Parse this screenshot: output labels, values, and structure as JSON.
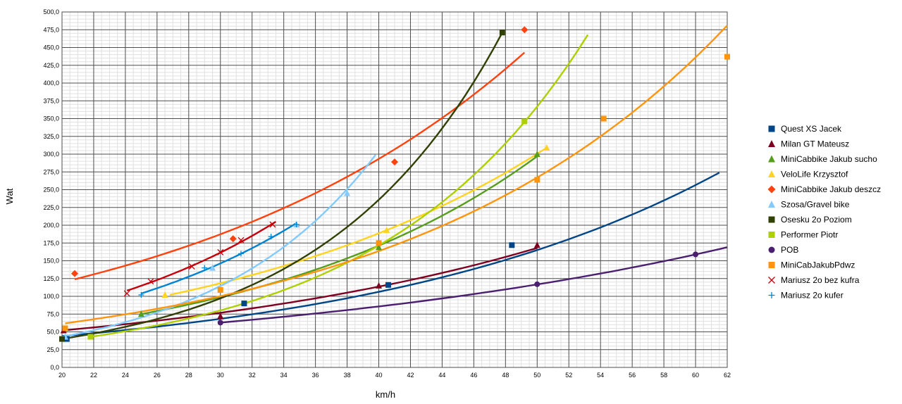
{
  "chart_data": {
    "type": "scatter",
    "xlabel": "km/h",
    "ylabel": "Wat",
    "xlim": [
      20,
      62
    ],
    "ylim": [
      0,
      500
    ],
    "x_ticks": [
      "20",
      "22",
      "24",
      "26",
      "28",
      "30",
      "32",
      "34",
      "36",
      "38",
      "40",
      "42",
      "44",
      "46",
      "48",
      "50",
      "52",
      "54",
      "56",
      "58",
      "60",
      "62"
    ],
    "y_ticks": [
      "0,0",
      "25,0",
      "50,0",
      "75,0",
      "100,0",
      "125,0",
      "150,0",
      "175,0",
      "200,0",
      "225,0",
      "250,0",
      "275,0",
      "300,0",
      "325,0",
      "350,0",
      "375,0",
      "400,0",
      "425,0",
      "450,0",
      "475,0",
      "500,0"
    ],
    "grid": true,
    "legend_position": "right",
    "series": [
      {
        "name": "Quest XS Jacek",
        "color": "#004586",
        "marker": "square",
        "points": [
          [
            20.3,
            40
          ],
          [
            31.5,
            90
          ],
          [
            40.6,
            116
          ],
          [
            48.4,
            172
          ]
        ],
        "trend": [
          [
            20,
            44
          ],
          [
            61.5,
            274
          ]
        ]
      },
      {
        "name": "Milan GT Mateusz",
        "color": "#7e0021",
        "marker": "triangle",
        "points": [
          [
            20.1,
            52
          ],
          [
            30,
            72
          ],
          [
            40,
            115
          ],
          [
            50,
            172
          ]
        ],
        "trend": [
          [
            20,
            52
          ],
          [
            50,
            168
          ]
        ]
      },
      {
        "name": "MiniCabbike Jakub sucho",
        "color": "#579d1c",
        "marker": "triangle",
        "points": [
          [
            25,
            75
          ],
          [
            40,
            169
          ],
          [
            50,
            300
          ]
        ],
        "trend": [
          [
            25,
            75
          ],
          [
            50,
            297
          ]
        ]
      },
      {
        "name": "VeloLife Krzysztof",
        "color": "#ffd320",
        "marker": "triangle",
        "points": [
          [
            26.5,
            102
          ],
          [
            40.5,
            193
          ],
          [
            50.6,
            309
          ]
        ],
        "trend": [
          [
            26.8,
            102
          ],
          [
            50.6,
            309
          ]
        ]
      },
      {
        "name": "MiniCabbike Jakub deszcz",
        "color": "#ff420e",
        "marker": "diamond",
        "points": [
          [
            20.8,
            132
          ],
          [
            30.8,
            181
          ],
          [
            41,
            289
          ],
          [
            49.2,
            475
          ]
        ],
        "trend": [
          [
            20.8,
            124
          ],
          [
            49.2,
            443
          ]
        ]
      },
      {
        "name": "Szosa/Gravel bike",
        "color": "#83caff",
        "marker": "triangle",
        "points": [
          [
            20.2,
            43
          ],
          [
            29.5,
            140
          ],
          [
            34.8,
            201
          ],
          [
            38,
            245
          ]
        ],
        "trend": [
          [
            20,
            43
          ],
          [
            39.8,
            299
          ]
        ]
      },
      {
        "name": "Osesku 2o Poziom",
        "color": "#314004",
        "marker": "square",
        "points": [
          [
            20,
            40
          ],
          [
            47.8,
            471
          ]
        ],
        "trend": [
          [
            20,
            40
          ],
          [
            47.8,
            471
          ]
        ]
      },
      {
        "name": "Performer Piotr",
        "color": "#aecf00",
        "marker": "square",
        "points": [
          [
            21.8,
            43
          ],
          [
            49.2,
            346
          ]
        ],
        "trend": [
          [
            21.8,
            43
          ],
          [
            53.2,
            468
          ]
        ]
      },
      {
        "name": "POB",
        "color": "#4b1f6f",
        "marker": "circle",
        "points": [
          [
            30,
            63
          ],
          [
            50,
            117
          ],
          [
            60,
            159
          ]
        ],
        "trend": [
          [
            30,
            63
          ],
          [
            62,
            169
          ]
        ]
      },
      {
        "name": "MiniCabJakubPdwz",
        "color": "#ff950e",
        "marker": "square",
        "points": [
          [
            20.2,
            55
          ],
          [
            30,
            109
          ],
          [
            40,
            175
          ],
          [
            50,
            264
          ],
          [
            54.2,
            350
          ],
          [
            62,
            437
          ]
        ],
        "trend": [
          [
            20.2,
            62
          ],
          [
            62,
            481
          ]
        ]
      },
      {
        "name": "Mariusz 2o bez kufra",
        "color": "#c5000b",
        "marker": "x",
        "points": [
          [
            24.1,
            104
          ],
          [
            25.6,
            121
          ],
          [
            28.2,
            142
          ],
          [
            30,
            162
          ],
          [
            31.3,
            179
          ],
          [
            33.3,
            201
          ]
        ],
        "trend": [
          [
            24.1,
            108
          ],
          [
            33.5,
            205
          ]
        ]
      },
      {
        "name": "Mariusz 2o kufer",
        "color": "#0084d1",
        "marker": "plus",
        "points": [
          [
            25,
            102
          ],
          [
            29,
            140
          ],
          [
            31.3,
            160
          ],
          [
            33.2,
            184
          ],
          [
            34.8,
            201
          ]
        ],
        "trend": [
          [
            25,
            104
          ],
          [
            34.8,
            203
          ]
        ]
      }
    ]
  }
}
